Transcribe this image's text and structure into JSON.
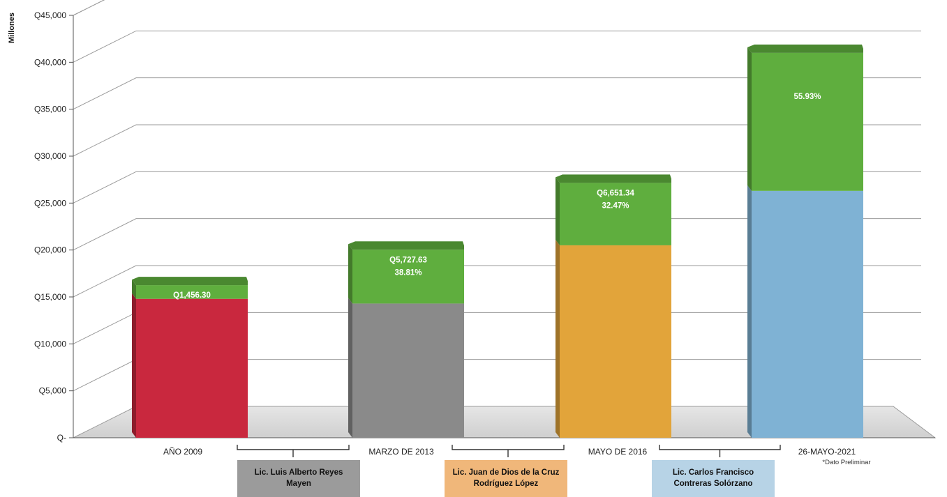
{
  "chart_data": {
    "type": "bar",
    "stacked": true,
    "ylabel": "Millones",
    "ylim": [
      0,
      45000
    ],
    "y_ticks": [
      "Q-",
      "Q5,000",
      "Q10,000",
      "Q15,000",
      "Q20,000",
      "Q25,000",
      "Q30,000",
      "Q35,000",
      "Q40,000",
      "Q45,000"
    ],
    "grid": true,
    "categories": [
      "AÑO 2009",
      "MARZO DE 2013",
      "MAYO DE 2016",
      "26-MAYO-2021"
    ],
    "category_note": "*Dato Preliminar",
    "base_values": [
      14800,
      14300,
      20500,
      26300
    ],
    "base_colors": [
      "#c9283e",
      "#8a8a8a",
      "#e2a43a",
      "#7fb2d4"
    ],
    "increments": [
      {
        "value": 1456.3,
        "label": "Q1,456.30",
        "percent": ""
      },
      {
        "value": 5727.63,
        "label": "Q5,727.63",
        "percent": "38.81%"
      },
      {
        "value": 6651.34,
        "label": "Q6,651.34",
        "percent": "32.47%"
      },
      {
        "value": 14700,
        "label": "",
        "percent": "55.93%"
      }
    ],
    "increment_color": "#5fae3e"
  },
  "periods": [
    {
      "name": "Lic. Luis Alberto Reyes\nMayen",
      "color": "#9b9b9b"
    },
    {
      "name": "Lic. Juan de Dios de la Cruz\nRodríguez López",
      "color": "#f0b77a"
    },
    {
      "name": "Lic. Carlos Francisco\nContreras Solórzano",
      "color": "#b7d3e6"
    }
  ]
}
